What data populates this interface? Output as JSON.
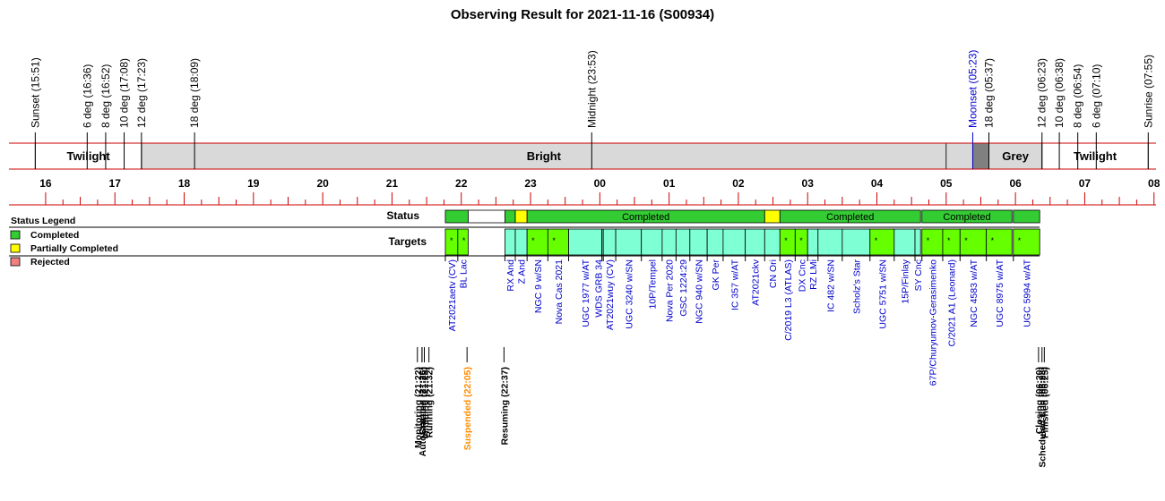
{
  "title": "Observing Result for 2021-11-16 (S00934)",
  "top_events": [
    {
      "label": "Sunset (15:51)",
      "t": 15.85,
      "color": "#000000"
    },
    {
      "label": "6 deg (16:36)",
      "t": 16.6,
      "color": "#000000"
    },
    {
      "label": "8 deg (16:52)",
      "t": 16.8667,
      "color": "#000000"
    },
    {
      "label": "10 deg (17:08)",
      "t": 17.1333,
      "color": "#000000"
    },
    {
      "label": "12 deg (17:23)",
      "t": 17.3833,
      "color": "#000000"
    },
    {
      "label": "18 deg (18:09)",
      "t": 18.15,
      "color": "#000000"
    },
    {
      "label": "Midnight (23:53)",
      "t": 23.8833,
      "color": "#000000"
    },
    {
      "label": "Moonset (05:23)",
      "t": 29.3833,
      "color": "#0000cc"
    },
    {
      "label": "18 deg (05:37)",
      "t": 29.6167,
      "color": "#000000"
    },
    {
      "label": "12 deg (06:23)",
      "t": 30.3833,
      "color": "#000000"
    },
    {
      "label": "10 deg (06:38)",
      "t": 30.6333,
      "color": "#000000"
    },
    {
      "label": "8 deg (06:54)",
      "t": 30.9,
      "color": "#000000"
    },
    {
      "label": "6 deg (07:10)",
      "t": 31.1667,
      "color": "#000000"
    },
    {
      "label": "Sunrise (07:55)",
      "t": 31.9167,
      "color": "#000000"
    }
  ],
  "sky_bands": [
    {
      "label": "Twilight",
      "start": 15.85,
      "end": 17.3833,
      "fill": "#ffffff"
    },
    {
      "label": "Bright",
      "start": 17.3833,
      "end": 29.0,
      "fill": "#d9d9d9"
    },
    {
      "label": "",
      "start": 29.0,
      "end": 29.3833,
      "fill": "#d9d9d9"
    },
    {
      "label": "",
      "start": 29.3833,
      "end": 29.6167,
      "fill": "#808080"
    },
    {
      "label": "Grey",
      "start": 29.6167,
      "end": 30.3833,
      "fill": "#d9d9d9"
    },
    {
      "label": "Twilight",
      "start": 30.3833,
      "end": 31.9167,
      "fill": "#ffffff"
    }
  ],
  "hour_ticks": [
    "16",
    "17",
    "18",
    "19",
    "20",
    "21",
    "22",
    "23",
    "00",
    "01",
    "02",
    "03",
    "04",
    "05",
    "06",
    "07",
    "08"
  ],
  "legend": {
    "title": "Status Legend",
    "items": [
      {
        "label": "Completed",
        "color": "#33cc33"
      },
      {
        "label": "Partially Completed",
        "color": "#ffff00"
      },
      {
        "label": "Rejected",
        "color": "#f08080"
      }
    ]
  },
  "row_labels": {
    "status": "Status",
    "targets": "Targets"
  },
  "status_segments": [
    {
      "label": "",
      "start": 21.77,
      "end": 22.1,
      "color": "#33cc33"
    },
    {
      "label": "",
      "start": 22.1,
      "end": 22.63,
      "color": "#ffffff"
    },
    {
      "label": "",
      "start": 22.63,
      "end": 22.78,
      "color": "#33cc33"
    },
    {
      "label": "",
      "start": 22.78,
      "end": 22.95,
      "color": "#ffff00"
    },
    {
      "label": "Completed",
      "start": 22.95,
      "end": 26.38,
      "color": "#33cc33"
    },
    {
      "label": "",
      "start": 26.38,
      "end": 26.6,
      "color": "#ffff00"
    },
    {
      "label": "Completed",
      "start": 26.6,
      "end": 28.63,
      "color": "#33cc33"
    },
    {
      "label": "Completed",
      "start": 28.65,
      "end": 29.95,
      "color": "#33cc33"
    },
    {
      "label": "",
      "start": 29.97,
      "end": 30.35,
      "color": "#33cc33"
    }
  ],
  "targets": [
    {
      "name": "AT2021aetv (CV)",
      "start": 21.77,
      "end": 21.95,
      "fill": "#66ff00",
      "mark": "*"
    },
    {
      "name": "BL Lac",
      "start": 21.95,
      "end": 22.1,
      "fill": "#66ff00",
      "mark": "*"
    },
    {
      "name": "RX And",
      "start": 22.63,
      "end": 22.78,
      "fill": "#7fffd4",
      "mark": ""
    },
    {
      "name": "Z And",
      "start": 22.78,
      "end": 22.95,
      "fill": "#7fffd4",
      "mark": ""
    },
    {
      "name": "NGC 9 w/SN",
      "start": 22.95,
      "end": 23.25,
      "fill": "#66ff00",
      "mark": "*"
    },
    {
      "name": "Nova Cas 2021",
      "start": 23.25,
      "end": 23.55,
      "fill": "#66ff00",
      "mark": "*"
    },
    {
      "name": "UGC 1977 w/AT",
      "start": 23.55,
      "end": 24.03,
      "fill": "#7fffd4",
      "mark": ""
    },
    {
      "name": "WDS GRB 34",
      "start": 24.03,
      "end": 24.05,
      "fill": "#7fffd4",
      "mark": ""
    },
    {
      "name": "AT2021wuy (CV)",
      "start": 24.05,
      "end": 24.23,
      "fill": "#7fffd4",
      "mark": ""
    },
    {
      "name": "UGC 3240 w/SN",
      "start": 24.23,
      "end": 24.6,
      "fill": "#7fffd4",
      "mark": ""
    },
    {
      "name": "10P/Tempel",
      "start": 24.6,
      "end": 24.9,
      "fill": "#7fffd4",
      "mark": ""
    },
    {
      "name": "Nova Per 2020",
      "start": 24.9,
      "end": 25.1,
      "fill": "#7fffd4",
      "mark": ""
    },
    {
      "name": "GSC 1224:29",
      "start": 25.1,
      "end": 25.3,
      "fill": "#7fffd4",
      "mark": ""
    },
    {
      "name": "NGC 940 w/SN",
      "start": 25.3,
      "end": 25.55,
      "fill": "#7fffd4",
      "mark": ""
    },
    {
      "name": "GK Per",
      "start": 25.55,
      "end": 25.78,
      "fill": "#7fffd4",
      "mark": ""
    },
    {
      "name": "IC 357 w/AT",
      "start": 25.78,
      "end": 26.1,
      "fill": "#7fffd4",
      "mark": ""
    },
    {
      "name": "AT2021ckv",
      "start": 26.1,
      "end": 26.38,
      "fill": "#7fffd4",
      "mark": ""
    },
    {
      "name": "CN Ori",
      "start": 26.38,
      "end": 26.6,
      "fill": "#7fffd4",
      "mark": ""
    },
    {
      "name": "C/2019 L3 (ATLAS)",
      "start": 26.6,
      "end": 26.82,
      "fill": "#66ff00",
      "mark": "*"
    },
    {
      "name": "DX Cnc",
      "start": 26.82,
      "end": 27.0,
      "fill": "#66ff00",
      "mark": "*"
    },
    {
      "name": "RZ LMi",
      "start": 27.0,
      "end": 27.15,
      "fill": "#7fffd4",
      "mark": ""
    },
    {
      "name": "IC 482 w/SN",
      "start": 27.15,
      "end": 27.5,
      "fill": "#7fffd4",
      "mark": ""
    },
    {
      "name": "Scholz's Star",
      "start": 27.5,
      "end": 27.9,
      "fill": "#7fffd4",
      "mark": ""
    },
    {
      "name": "UGC 5751 w/SN",
      "start": 27.9,
      "end": 28.25,
      "fill": "#66ff00",
      "mark": "*"
    },
    {
      "name": "15P/Finlay",
      "start": 28.25,
      "end": 28.55,
      "fill": "#7fffd4",
      "mark": ""
    },
    {
      "name": "SY Cnc",
      "start": 28.55,
      "end": 28.63,
      "fill": "#7fffd4",
      "mark": ""
    },
    {
      "name": "67P/Churyumov-Gerasimenko",
      "start": 28.65,
      "end": 28.95,
      "fill": "#66ff00",
      "mark": "*"
    },
    {
      "name": "C/2021 A1 (Leonard)",
      "start": 28.95,
      "end": 29.2,
      "fill": "#66ff00",
      "mark": "*"
    },
    {
      "name": "NGC 4583 w/AT",
      "start": 29.2,
      "end": 29.58,
      "fill": "#66ff00",
      "mark": "*"
    },
    {
      "name": "UGC 8975 w/AT",
      "start": 29.58,
      "end": 29.95,
      "fill": "#66ff00",
      "mark": "*"
    },
    {
      "name": "UGC 5994 w/AT",
      "start": 29.97,
      "end": 30.35,
      "fill": "#66ff00",
      "mark": "*"
    }
  ],
  "bottom_events": [
    {
      "label": "Monitoring (21:22)",
      "t": 21.3667,
      "color": "#000000"
    },
    {
      "label": "AutoStarting (21:26)",
      "t": 21.4333,
      "color": "#000000"
    },
    {
      "label": "Created (21:26)",
      "t": 21.4333,
      "color": "#000000"
    },
    {
      "label": "Initiating (21:28)",
      "t": 21.4667,
      "color": "#000000"
    },
    {
      "label": "Running (21:32)",
      "t": 21.5333,
      "color": "#000000"
    },
    {
      "label": "Suspended (22:05)",
      "t": 22.0833,
      "color": "#ff8c00"
    },
    {
      "label": "Resuming (22:37)",
      "t": 22.6167,
      "color": "#000000"
    },
    {
      "label": "Closing (06:20)",
      "t": 30.3333,
      "color": "#000000"
    },
    {
      "label": "Scheduled End (06:23)",
      "t": 30.3833,
      "color": "#000000"
    },
    {
      "label": "Finished (06:25)",
      "t": 30.4167,
      "color": "#000000"
    }
  ]
}
